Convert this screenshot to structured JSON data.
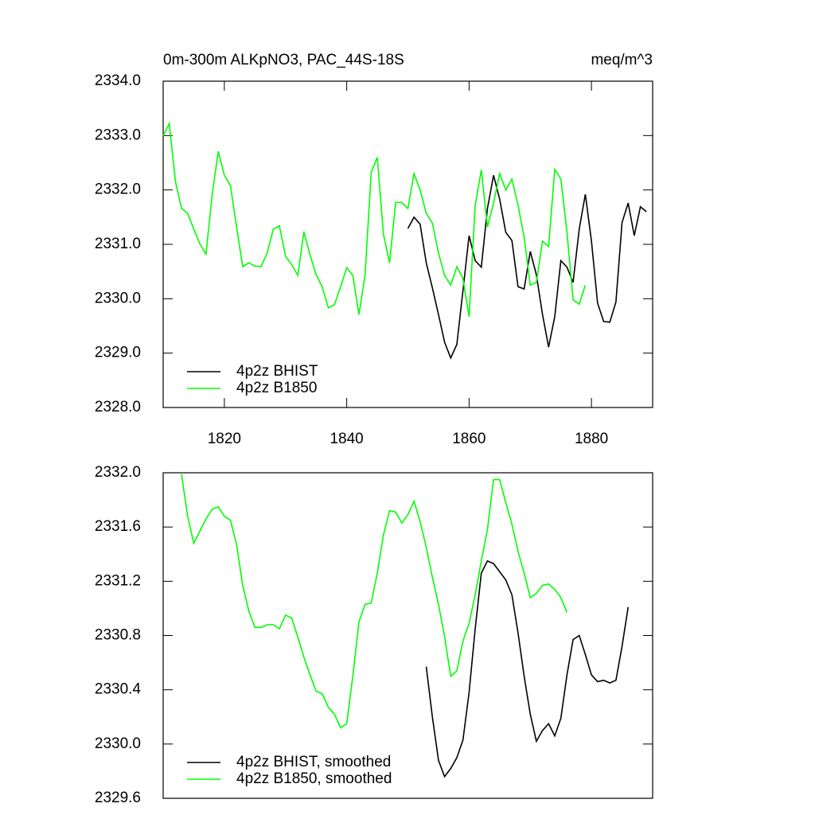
{
  "chart_data": [
    {
      "type": "line",
      "title": "0m-300m ALKpNO3, PAC_44S-18S",
      "units_label": "meq/m^3",
      "xlim": [
        1810,
        1890
      ],
      "xticks": [
        1820,
        1840,
        1860,
        1880
      ],
      "ylim": [
        2328,
        2334
      ],
      "yticks": [
        {
          "value": 2328,
          "label": "2328.0"
        },
        {
          "value": 2329,
          "label": "2329.0"
        },
        {
          "value": 2330,
          "label": "2330.0"
        },
        {
          "value": 2331,
          "label": "2331.0"
        },
        {
          "value": 2332,
          "label": "2332.0"
        },
        {
          "value": 2333,
          "label": "2333.0"
        },
        {
          "value": 2334,
          "label": "2334.0"
        }
      ],
      "legend": "lower left",
      "series": [
        {
          "name": "4p2z BHIST",
          "color": "#000000",
          "x": [
            1850,
            1851,
            1852,
            1853,
            1854,
            1855,
            1856,
            1857,
            1858,
            1859,
            1860,
            1861,
            1862,
            1863,
            1864,
            1865,
            1866,
            1867,
            1868,
            1869,
            1870,
            1871,
            1872,
            1873,
            1874,
            1875,
            1876,
            1877,
            1878,
            1879,
            1880,
            1881,
            1882,
            1883,
            1884,
            1885,
            1886,
            1887,
            1888,
            1889
          ],
          "values": [
            2331.29,
            2331.5,
            2331.37,
            2330.66,
            2330.2,
            2329.71,
            2329.2,
            2328.91,
            2329.16,
            2330.15,
            2331.16,
            2330.7,
            2330.58,
            2331.66,
            2332.27,
            2331.83,
            2331.22,
            2331.07,
            2330.22,
            2330.18,
            2330.87,
            2330.44,
            2329.71,
            2329.11,
            2329.67,
            2330.7,
            2330.58,
            2330.3,
            2331.28,
            2331.92,
            2331.06,
            2329.92,
            2329.58,
            2329.57,
            2329.94,
            2331.4,
            2331.76,
            2331.16,
            2331.69,
            2331.6
          ]
        },
        {
          "name": "4p2z B1850",
          "color": "#00ff00",
          "x": [
            1810,
            1811,
            1812,
            1813,
            1814,
            1815,
            1816,
            1817,
            1818,
            1819,
            1820,
            1821,
            1822,
            1823,
            1824,
            1825,
            1826,
            1827,
            1828,
            1829,
            1830,
            1831,
            1832,
            1833,
            1834,
            1835,
            1836,
            1837,
            1838,
            1839,
            1840,
            1841,
            1842,
            1843,
            1844,
            1845,
            1846,
            1847,
            1848,
            1849,
            1850,
            1851,
            1852,
            1853,
            1854,
            1855,
            1856,
            1857,
            1858,
            1859,
            1860,
            1861,
            1862,
            1863,
            1864,
            1865,
            1866,
            1867,
            1868,
            1869,
            1870,
            1871,
            1872,
            1873,
            1874,
            1875,
            1876,
            1877,
            1878,
            1879
          ],
          "values": [
            2333.0,
            2333.22,
            2332.16,
            2331.66,
            2331.57,
            2331.28,
            2331.01,
            2330.82,
            2331.9,
            2332.71,
            2332.27,
            2332.08,
            2331.32,
            2330.59,
            2330.66,
            2330.6,
            2330.59,
            2330.84,
            2331.28,
            2331.34,
            2330.78,
            2330.63,
            2330.43,
            2331.23,
            2330.81,
            2330.44,
            2330.22,
            2329.83,
            2329.89,
            2330.22,
            2330.57,
            2330.43,
            2329.71,
            2330.44,
            2332.32,
            2332.6,
            2331.19,
            2330.66,
            2331.77,
            2331.77,
            2331.66,
            2332.3,
            2332.0,
            2331.57,
            2331.39,
            2330.84,
            2330.43,
            2330.25,
            2330.59,
            2330.37,
            2329.67,
            2331.72,
            2332.37,
            2331.32,
            2331.76,
            2332.3,
            2332.0,
            2332.2,
            2331.72,
            2331.13,
            2330.25,
            2330.3,
            2331.06,
            2330.96,
            2332.38,
            2332.2,
            2331.22,
            2329.98,
            2329.9,
            2330.25
          ]
        }
      ]
    },
    {
      "type": "line",
      "xlim": [
        1810,
        1890
      ],
      "ylim": [
        2329.6,
        2332
      ],
      "yticks": [
        {
          "value": 2329.6,
          "label": "2329.6"
        },
        {
          "value": 2330,
          "label": "2330.0"
        },
        {
          "value": 2330.4,
          "label": "2330.4"
        },
        {
          "value": 2330.8,
          "label": "2330.8"
        },
        {
          "value": 2331.2,
          "label": "2331.2"
        },
        {
          "value": 2331.6,
          "label": "2331.6"
        },
        {
          "value": 2332,
          "label": "2332.0"
        }
      ],
      "legend": "lower left",
      "series": [
        {
          "name": "4p2z BHIST, smoothed",
          "color": "#000000",
          "x": [
            1853,
            1854,
            1855,
            1856,
            1857,
            1858,
            1859,
            1860,
            1861,
            1862,
            1863,
            1864,
            1865,
            1866,
            1867,
            1868,
            1869,
            1870,
            1871,
            1872,
            1873,
            1874,
            1875,
            1876,
            1877,
            1878,
            1879,
            1880,
            1881,
            1882,
            1883,
            1884,
            1885,
            1886
          ],
          "values": [
            2330.57,
            2330.2,
            2329.88,
            2329.76,
            2329.82,
            2329.9,
            2330.03,
            2330.38,
            2330.85,
            2331.26,
            2331.35,
            2331.33,
            2331.27,
            2331.21,
            2331.1,
            2330.82,
            2330.5,
            2330.22,
            2330.02,
            2330.1,
            2330.15,
            2330.06,
            2330.19,
            2330.51,
            2330.77,
            2330.8,
            2330.66,
            2330.51,
            2330.46,
            2330.47,
            2330.45,
            2330.47,
            2330.72,
            2331.01
          ]
        },
        {
          "name": "4p2z B1850, smoothed",
          "color": "#00ff00",
          "x": [
            1813,
            1814,
            1815,
            1816,
            1817,
            1818,
            1819,
            1820,
            1821,
            1822,
            1823,
            1824,
            1825,
            1826,
            1827,
            1828,
            1829,
            1830,
            1831,
            1832,
            1833,
            1834,
            1835,
            1836,
            1837,
            1838,
            1839,
            1840,
            1841,
            1842,
            1843,
            1844,
            1845,
            1846,
            1847,
            1848,
            1849,
            1850,
            1851,
            1852,
            1853,
            1854,
            1855,
            1856,
            1857,
            1858,
            1859,
            1860,
            1861,
            1862,
            1863,
            1864,
            1865,
            1866,
            1867,
            1868,
            1869,
            1870,
            1871,
            1872,
            1873,
            1874,
            1875,
            1876
          ],
          "values": [
            2331.99,
            2331.68,
            2331.48,
            2331.57,
            2331.66,
            2331.73,
            2331.75,
            2331.68,
            2331.65,
            2331.47,
            2331.17,
            2330.98,
            2330.86,
            2330.86,
            2330.88,
            2330.88,
            2330.85,
            2330.95,
            2330.93,
            2330.79,
            2330.64,
            2330.51,
            2330.39,
            2330.37,
            2330.27,
            2330.22,
            2330.12,
            2330.15,
            2330.5,
            2330.9,
            2331.03,
            2331.04,
            2331.26,
            2331.54,
            2331.72,
            2331.71,
            2331.63,
            2331.69,
            2331.79,
            2331.64,
            2331.45,
            2331.23,
            2331.03,
            2330.79,
            2330.5,
            2330.54,
            2330.76,
            2330.89,
            2331.1,
            2331.35,
            2331.58,
            2331.95,
            2331.95,
            2331.78,
            2331.62,
            2331.42,
            2331.26,
            2331.08,
            2331.11,
            2331.17,
            2331.18,
            2331.14,
            2331.08,
            2330.97
          ]
        }
      ]
    }
  ]
}
